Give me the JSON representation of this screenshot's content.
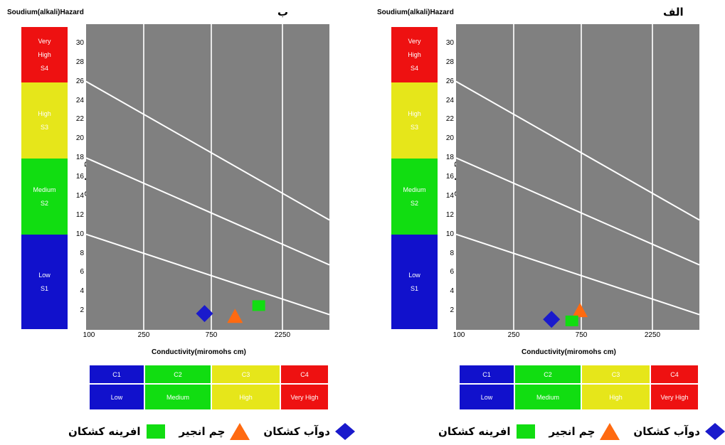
{
  "axis_title_hazard": "Soudium(alkali)Hazard",
  "sar_label": "S A R",
  "xlabel": "Conductivity(miromohs cm)",
  "yticks": [
    "2",
    "4",
    "6",
    "8",
    "10",
    "12",
    "14",
    "16",
    "18",
    "20",
    "22",
    "24",
    "26",
    "28",
    "30"
  ],
  "xticks": [
    "100",
    "250",
    "750",
    "2250"
  ],
  "hazard_classes": [
    {
      "line1": "Very",
      "line2": "High",
      "line3": "S4",
      "color": "#ee1111"
    },
    {
      "line1": "",
      "line2": "High",
      "line3": "S3",
      "color": "#e6e61a"
    },
    {
      "line1": "",
      "line2": "Medium",
      "line3": "S2",
      "color": "#11dd11"
    },
    {
      "line1": "",
      "line2": "Low",
      "line3": "S1",
      "color": "#1111cc"
    }
  ],
  "conductivity_classes": [
    {
      "code": "C1",
      "label": "Low",
      "color": "#1111cc"
    },
    {
      "code": "C2",
      "label": "Medium",
      "color": "#11dd11"
    },
    {
      "code": "C3",
      "label": "High",
      "color": "#e6e61a"
    },
    {
      "code": "C4",
      "label": "Very High",
      "color": "#ee1111"
    }
  ],
  "legend": [
    {
      "label": "دوآب کشکان",
      "shape": "diamond",
      "color": "#1a1acc"
    },
    {
      "label": "چم انجیر",
      "shape": "triangle",
      "color": "#ff6a10"
    },
    {
      "label": "افرینه کشکان",
      "shape": "square",
      "color": "#11dd11"
    }
  ],
  "plot_bg": "#808080",
  "chart_data": [
    {
      "type": "scatter",
      "panel_label": "ب",
      "xlabel": "Conductivity(miromohs cm)",
      "ylabel": "S A R",
      "ylim": [
        0,
        32
      ],
      "x_ticks": [
        100,
        250,
        750,
        2250
      ],
      "grid": true,
      "series": [
        {
          "name": "دوآب کشکان",
          "shape": "diamond",
          "x": 700,
          "y": 1.7
        },
        {
          "name": "چم انجیر",
          "shape": "triangle",
          "x": 1250,
          "y": 1.4
        },
        {
          "name": "افرینه کشکان",
          "shape": "square",
          "x": 1750,
          "y": 2.5
        }
      ]
    },
    {
      "type": "scatter",
      "panel_label": "الف",
      "xlabel": "Conductivity(miromohs cm)",
      "ylabel": "S A R",
      "ylim": [
        0,
        32
      ],
      "x_ticks": [
        100,
        250,
        750,
        2250
      ],
      "grid": true,
      "series": [
        {
          "name": "دوآب کشکان",
          "shape": "diamond",
          "x": 530,
          "y": 1.1
        },
        {
          "name": "چم انجیر",
          "shape": "triangle",
          "x": 740,
          "y": 2.0
        },
        {
          "name": "افرینه کشکان",
          "shape": "square",
          "x": 680,
          "y": 0.9
        }
      ]
    }
  ]
}
